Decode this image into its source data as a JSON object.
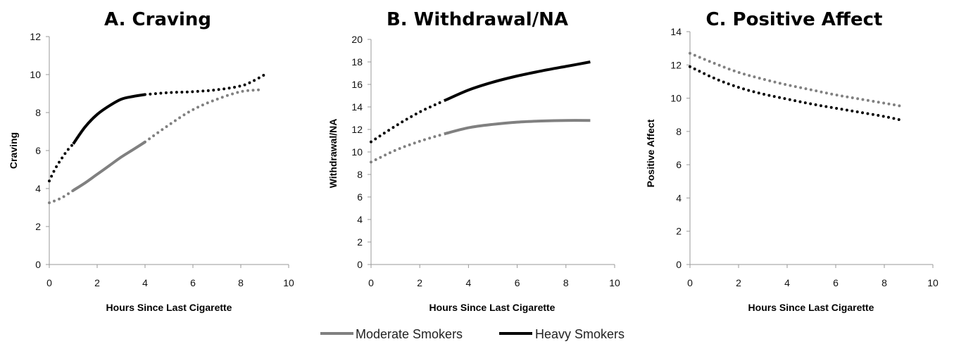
{
  "chart_data": [
    {
      "type": "line",
      "title": "A. Craving",
      "xlabel": "Hours Since Last Cigarette",
      "ylabel": "Craving",
      "xlim": [
        0,
        10
      ],
      "ylim": [
        0,
        12
      ],
      "xticks": [
        0,
        2,
        4,
        6,
        8,
        10
      ],
      "yticks": [
        0,
        2,
        4,
        6,
        8,
        10,
        12
      ],
      "series": [
        {
          "name": "Moderate Smokers",
          "color": "#808080",
          "segments": [
            {
              "style": "dotted",
              "x": [
                0,
                0.5,
                1
              ],
              "y": [
                3.25,
                3.5,
                3.9
              ]
            },
            {
              "style": "solid",
              "x": [
                1,
                1.5,
                2,
                2.5,
                3,
                3.5,
                4
              ],
              "y": [
                3.9,
                4.3,
                4.75,
                5.2,
                5.65,
                6.05,
                6.45
              ]
            },
            {
              "style": "dotted",
              "x": [
                4,
                5,
                6,
                7,
                8,
                8.8
              ],
              "y": [
                6.45,
                7.35,
                8.15,
                8.7,
                9.1,
                9.2
              ]
            }
          ]
        },
        {
          "name": "Heavy Smokers",
          "color": "#000000",
          "segments": [
            {
              "style": "dotted",
              "x": [
                0,
                0.25,
                0.5,
                0.75,
                1
              ],
              "y": [
                4.4,
                5.05,
                5.55,
                6.0,
                6.35
              ]
            },
            {
              "style": "solid",
              "x": [
                1,
                1.5,
                2,
                2.5,
                3,
                3.5,
                4
              ],
              "y": [
                6.35,
                7.25,
                7.9,
                8.35,
                8.7,
                8.85,
                8.95
              ]
            },
            {
              "style": "dotted",
              "x": [
                4,
                5,
                6,
                7,
                8,
                8.5,
                9
              ],
              "y": [
                8.95,
                9.05,
                9.1,
                9.2,
                9.4,
                9.65,
                10.0
              ]
            }
          ]
        }
      ]
    },
    {
      "type": "line",
      "title": "B. Withdrawal/NA",
      "xlabel": "Hours Since Last Cigarette",
      "ylabel": "Withdrawal/NA",
      "xlim": [
        0,
        10
      ],
      "ylim": [
        0,
        20
      ],
      "xticks": [
        0,
        2,
        4,
        6,
        8,
        10
      ],
      "yticks": [
        0,
        2,
        4,
        6,
        8,
        10,
        12,
        14,
        16,
        18,
        20
      ],
      "series": [
        {
          "name": "Moderate Smokers",
          "color": "#808080",
          "segments": [
            {
              "style": "dotted",
              "x": [
                0,
                1,
                2,
                3
              ],
              "y": [
                9.1,
                10.15,
                10.95,
                11.6
              ]
            },
            {
              "style": "solid",
              "x": [
                3,
                4,
                5,
                6,
                7,
                8,
                9
              ],
              "y": [
                11.6,
                12.15,
                12.45,
                12.65,
                12.75,
                12.8,
                12.8
              ]
            }
          ]
        },
        {
          "name": "Heavy Smokers",
          "color": "#000000",
          "segments": [
            {
              "style": "dotted",
              "x": [
                0,
                1,
                2,
                3
              ],
              "y": [
                10.9,
                12.3,
                13.55,
                14.55
              ]
            },
            {
              "style": "solid",
              "x": [
                3,
                4,
                5,
                6,
                7,
                8,
                9
              ],
              "y": [
                14.55,
                15.5,
                16.2,
                16.75,
                17.2,
                17.6,
                18.0
              ]
            }
          ]
        }
      ]
    },
    {
      "type": "line",
      "title": "C. Positive Affect",
      "xlabel": "Hours Since Last Cigarette",
      "ylabel": "Positive Affect",
      "xlim": [
        0,
        10
      ],
      "ylim": [
        0,
        14
      ],
      "xticks": [
        0,
        2,
        4,
        6,
        8,
        10
      ],
      "yticks": [
        0,
        2,
        4,
        6,
        8,
        10,
        12,
        14
      ],
      "series": [
        {
          "name": "Moderate Smokers",
          "color": "#808080",
          "segments": [
            {
              "style": "dotted",
              "x": [
                0,
                1,
                2,
                3,
                4,
                5,
                6,
                7,
                8,
                8.8
              ],
              "y": [
                12.7,
                12.1,
                11.55,
                11.15,
                10.8,
                10.5,
                10.2,
                9.95,
                9.7,
                9.5
              ]
            }
          ]
        },
        {
          "name": "Heavy Smokers",
          "color": "#000000",
          "segments": [
            {
              "style": "dotted",
              "x": [
                0,
                1,
                2,
                3,
                4,
                5,
                6,
                7,
                8,
                8.8
              ],
              "y": [
                11.9,
                11.2,
                10.65,
                10.25,
                9.95,
                9.65,
                9.4,
                9.15,
                8.9,
                8.65
              ]
            }
          ]
        }
      ]
    }
  ],
  "legend": {
    "placement": "bottom-center",
    "items": [
      {
        "label": "Moderate Smokers",
        "color": "#808080"
      },
      {
        "label": "Heavy Smokers",
        "color": "#000000"
      }
    ]
  }
}
